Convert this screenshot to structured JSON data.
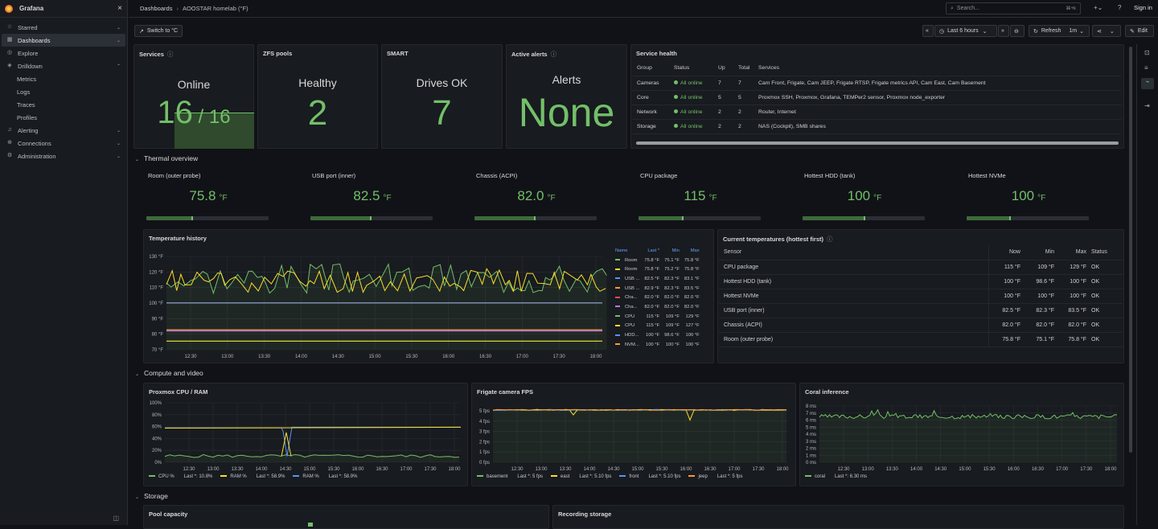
{
  "sidebar": {
    "title": "Grafana",
    "items": [
      {
        "label": "Starred",
        "icon": "star-icon"
      },
      {
        "label": "Dashboards",
        "icon": "dashboards-icon"
      },
      {
        "label": "Explore",
        "icon": "compass-icon"
      },
      {
        "label": "Drilldown",
        "icon": "drilldown-icon"
      },
      {
        "label": "Metrics"
      },
      {
        "label": "Logs"
      },
      {
        "label": "Traces"
      },
      {
        "label": "Profiles"
      },
      {
        "label": "Alerting",
        "icon": "bell-icon"
      },
      {
        "label": "Connections",
        "icon": "plug-icon"
      },
      {
        "label": "Administration",
        "icon": "gear-icon"
      }
    ]
  },
  "header": {
    "crumb1": "Dashboards",
    "crumb2": "AOOSTAR homelab (°F)",
    "search_placeholder": "Search...",
    "search_shortcut": "⌘+k",
    "signin": "Sign in"
  },
  "toolbar": {
    "switch": "Switch to °C",
    "timerange": "Last 6 hours",
    "refresh": "Refresh",
    "interval": "1m",
    "edit": "Edit"
  },
  "stats": {
    "services": {
      "title": "Services",
      "label": "Online",
      "value": "16",
      "total": "16"
    },
    "zfs": {
      "title": "ZFS pools",
      "label": "Healthy",
      "value": "2"
    },
    "smart": {
      "title": "SMART",
      "label": "Drives OK",
      "value": "7"
    },
    "alerts": {
      "title": "Active alerts",
      "label": "Alerts",
      "value": "None"
    }
  },
  "health": {
    "title": "Service health",
    "cols": [
      "Group",
      "Status",
      "Up",
      "Total",
      "Services"
    ],
    "rows": [
      {
        "group": "Cameras",
        "status": "All online",
        "up": "7",
        "total": "7",
        "services": "Cam Front, Frigate, Cam JEEP, Frigate RTSP, Frigate metrics API, Cam East, Cam Basement"
      },
      {
        "group": "Core",
        "status": "All online",
        "up": "5",
        "total": "5",
        "services": "Proxmox SSH, Proxmox, Grafana, TEMPer2 sensor, Proxmox node_exporter"
      },
      {
        "group": "Network",
        "status": "All online",
        "up": "2",
        "total": "2",
        "services": "Router, Internet"
      },
      {
        "group": "Storage",
        "status": "All online",
        "up": "2",
        "total": "2",
        "services": "NAS (Cockpit), SMB shares"
      }
    ]
  },
  "rows": {
    "thermal": "Thermal overview",
    "compute": "Compute and video",
    "storage": "Storage"
  },
  "gauges": [
    {
      "label": "Room (outer probe)",
      "value": "75.8",
      "unit": "°F",
      "fill": 0.38
    },
    {
      "label": "USB port (inner)",
      "value": "82.5",
      "unit": "°F",
      "fill": 0.5
    },
    {
      "label": "Chassis (ACPI)",
      "value": "82.0",
      "unit": "°F",
      "fill": 0.5
    },
    {
      "label": "CPU package",
      "value": "115",
      "unit": "°F",
      "fill": 0.37
    },
    {
      "label": "Hottest HDD (tank)",
      "value": "100",
      "unit": "°F",
      "fill": 0.51
    },
    {
      "label": "Hottest NVMe",
      "value": "100",
      "unit": "°F",
      "fill": 0.36
    }
  ],
  "temp_history": {
    "title": "Temperature history",
    "legend_cols": [
      "Name",
      "Last *",
      "Min",
      "Max"
    ],
    "legend": [
      {
        "name": "Room",
        "last": "75.8 °F",
        "min": "75.1 °F",
        "max": "75.8 °F",
        "color": "#73bf69"
      },
      {
        "name": "Room",
        "last": "75.8 °F",
        "min": "75.2 °F",
        "max": "75.8 °F",
        "color": "#fade2a"
      },
      {
        "name": "USB ...",
        "last": "82.5 °F",
        "min": "82.3 °F",
        "max": "83.1 °F",
        "color": "#5794f2"
      },
      {
        "name": "USB ...",
        "last": "82.9 °F",
        "min": "82.3 °F",
        "max": "83.5 °F",
        "color": "#ff9830"
      },
      {
        "name": "Cha...",
        "last": "82.0 °F",
        "min": "82.0 °F",
        "max": "82.0 °F",
        "color": "#f2495c"
      },
      {
        "name": "Cha...",
        "last": "82.0 °F",
        "min": "82.0 °F",
        "max": "82.0 °F",
        "color": "#b877d9"
      },
      {
        "name": "CPU",
        "last": "115 °F",
        "min": "109 °F",
        "max": "129 °F",
        "color": "#73bf69"
      },
      {
        "name": "CPU",
        "last": "115 °F",
        "min": "109 °F",
        "max": "127 °F",
        "color": "#fade2a"
      },
      {
        "name": "HDD...",
        "last": "100 °F",
        "min": "98.6 °F",
        "max": "100 °F",
        "color": "#5794f2"
      },
      {
        "name": "NVM...",
        "last": "100 °F",
        "min": "100 °F",
        "max": "100 °F",
        "color": "#ff9830"
      }
    ],
    "y_ticks": [
      "130 °F",
      "120 °F",
      "110 °F",
      "100 °F",
      "90 °F",
      "80 °F",
      "70 °F"
    ],
    "x_ticks": [
      "12:30",
      "13:00",
      "13:30",
      "14:00",
      "14:30",
      "15:00",
      "15:30",
      "16:00",
      "16:30",
      "17:00",
      "17:30",
      "18:00"
    ]
  },
  "current": {
    "title": "Current temperatures (hottest first)",
    "cols": [
      "Sensor",
      "Now",
      "Min",
      "Max",
      "Status"
    ],
    "rows": [
      {
        "sensor": "CPU package",
        "now": "115 °F",
        "min": "109 °F",
        "max": "129 °F",
        "status": "OK"
      },
      {
        "sensor": "Hottest HDD (tank)",
        "now": "100 °F",
        "min": "98.6 °F",
        "max": "100 °F",
        "status": "OK"
      },
      {
        "sensor": "Hottest NVMe",
        "now": "100 °F",
        "min": "100 °F",
        "max": "100 °F",
        "status": "OK"
      },
      {
        "sensor": "USB port (inner)",
        "now": "82.5 °F",
        "min": "82.3 °F",
        "max": "83.5 °F",
        "status": "OK"
      },
      {
        "sensor": "Chassis (ACPI)",
        "now": "82.0 °F",
        "min": "82.0 °F",
        "max": "82.0 °F",
        "status": "OK"
      },
      {
        "sensor": "Room (outer probe)",
        "now": "75.8 °F",
        "min": "75.1 °F",
        "max": "75.8 °F",
        "status": "OK"
      }
    ]
  },
  "cpu_ram": {
    "title": "Proxmox CPU / RAM",
    "y_ticks": [
      "100%",
      "80%",
      "60%",
      "40%",
      "20%",
      "0%"
    ],
    "x_ticks": [
      "12:30",
      "13:00",
      "13:30",
      "14:00",
      "14:30",
      "15:00",
      "15:30",
      "16:00",
      "16:30",
      "17:00",
      "17:30",
      "18:00"
    ],
    "legend": [
      {
        "name": "CPU %",
        "last": "Last *: 10.8%",
        "color": "#73bf69"
      },
      {
        "name": "RAM %",
        "last": "Last *: 58.9%",
        "color": "#fade2a"
      },
      {
        "name": "RAM %",
        "last": "Last *: 58.9%",
        "color": "#5794f2"
      }
    ]
  },
  "fps": {
    "title": "Frigate camera FPS",
    "y_ticks": [
      "5 fps",
      "4 fps",
      "3 fps",
      "2 fps",
      "1 fps",
      "0 fps"
    ],
    "x_ticks": [
      "12:30",
      "13:00",
      "13:30",
      "14:00",
      "14:30",
      "15:00",
      "15:30",
      "16:00",
      "16:30",
      "17:00",
      "17:30",
      "18:00"
    ],
    "legend": [
      {
        "name": "basement",
        "last": "Last *: 5 fps",
        "color": "#73bf69"
      },
      {
        "name": "east",
        "last": "Last *: 5.10 fps",
        "color": "#fade2a"
      },
      {
        "name": "front",
        "last": "Last *: 5.10 fps",
        "color": "#5794f2"
      },
      {
        "name": "jeep",
        "last": "Last *: 5 fps",
        "color": "#ff9830"
      }
    ]
  },
  "coral": {
    "title": "Coral inference",
    "y_ticks": [
      "8 ms",
      "7 ms",
      "6 ms",
      "5 ms",
      "4 ms",
      "3 ms",
      "2 ms",
      "1 ms",
      "0 ms"
    ],
    "x_ticks": [
      "12:30",
      "13:00",
      "13:30",
      "14:00",
      "14:30",
      "15:00",
      "15:30",
      "16:00",
      "16:30",
      "17:00",
      "17:30",
      "18:00"
    ],
    "legend": [
      {
        "name": "coral",
        "last": "Last *: 6.30 ms",
        "color": "#73bf69"
      }
    ]
  },
  "storage": {
    "pool": "Pool capacity",
    "recording": "Recording storage"
  }
}
